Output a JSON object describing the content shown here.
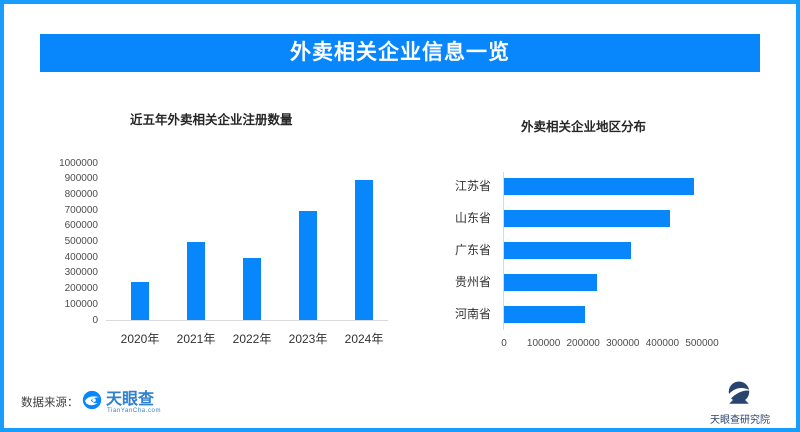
{
  "header": {
    "title": "外卖相关企业信息一览"
  },
  "chart_data": [
    {
      "type": "bar",
      "orientation": "vertical",
      "title": "近五年外卖相关企业注册数量",
      "categories": [
        "2020年",
        "2021年",
        "2022年",
        "2023年",
        "2024年"
      ],
      "values": [
        245000,
        495000,
        395000,
        695000,
        895000
      ],
      "ylim": [
        0,
        1000000
      ],
      "ytick_step": 100000,
      "grid": false,
      "legend": null,
      "bar_color": "#0787fb"
    },
    {
      "type": "bar",
      "orientation": "horizontal",
      "title": "外卖相关企业地区分布",
      "categories": [
        "江苏省",
        "山东省",
        "广东省",
        "贵州省",
        "河南省"
      ],
      "values": [
        480000,
        420000,
        320000,
        235000,
        205000
      ],
      "xlim": [
        0,
        500000
      ],
      "xtick_step": 100000,
      "grid": false,
      "legend": null,
      "bar_color": "#0787fb"
    }
  ],
  "footer": {
    "source_label": "数据来源：",
    "tianyancha_logo": {
      "name": "天眼查",
      "subtext": "TianYanCha.com"
    },
    "research_institute": "天眼查研究院"
  },
  "colors": {
    "accent_blue": "#0787fb",
    "border_blue": "#189dfc",
    "axis_line": "#d9d9d9",
    "logo_blue": "#2f80cf",
    "navy": "#2a4470"
  }
}
